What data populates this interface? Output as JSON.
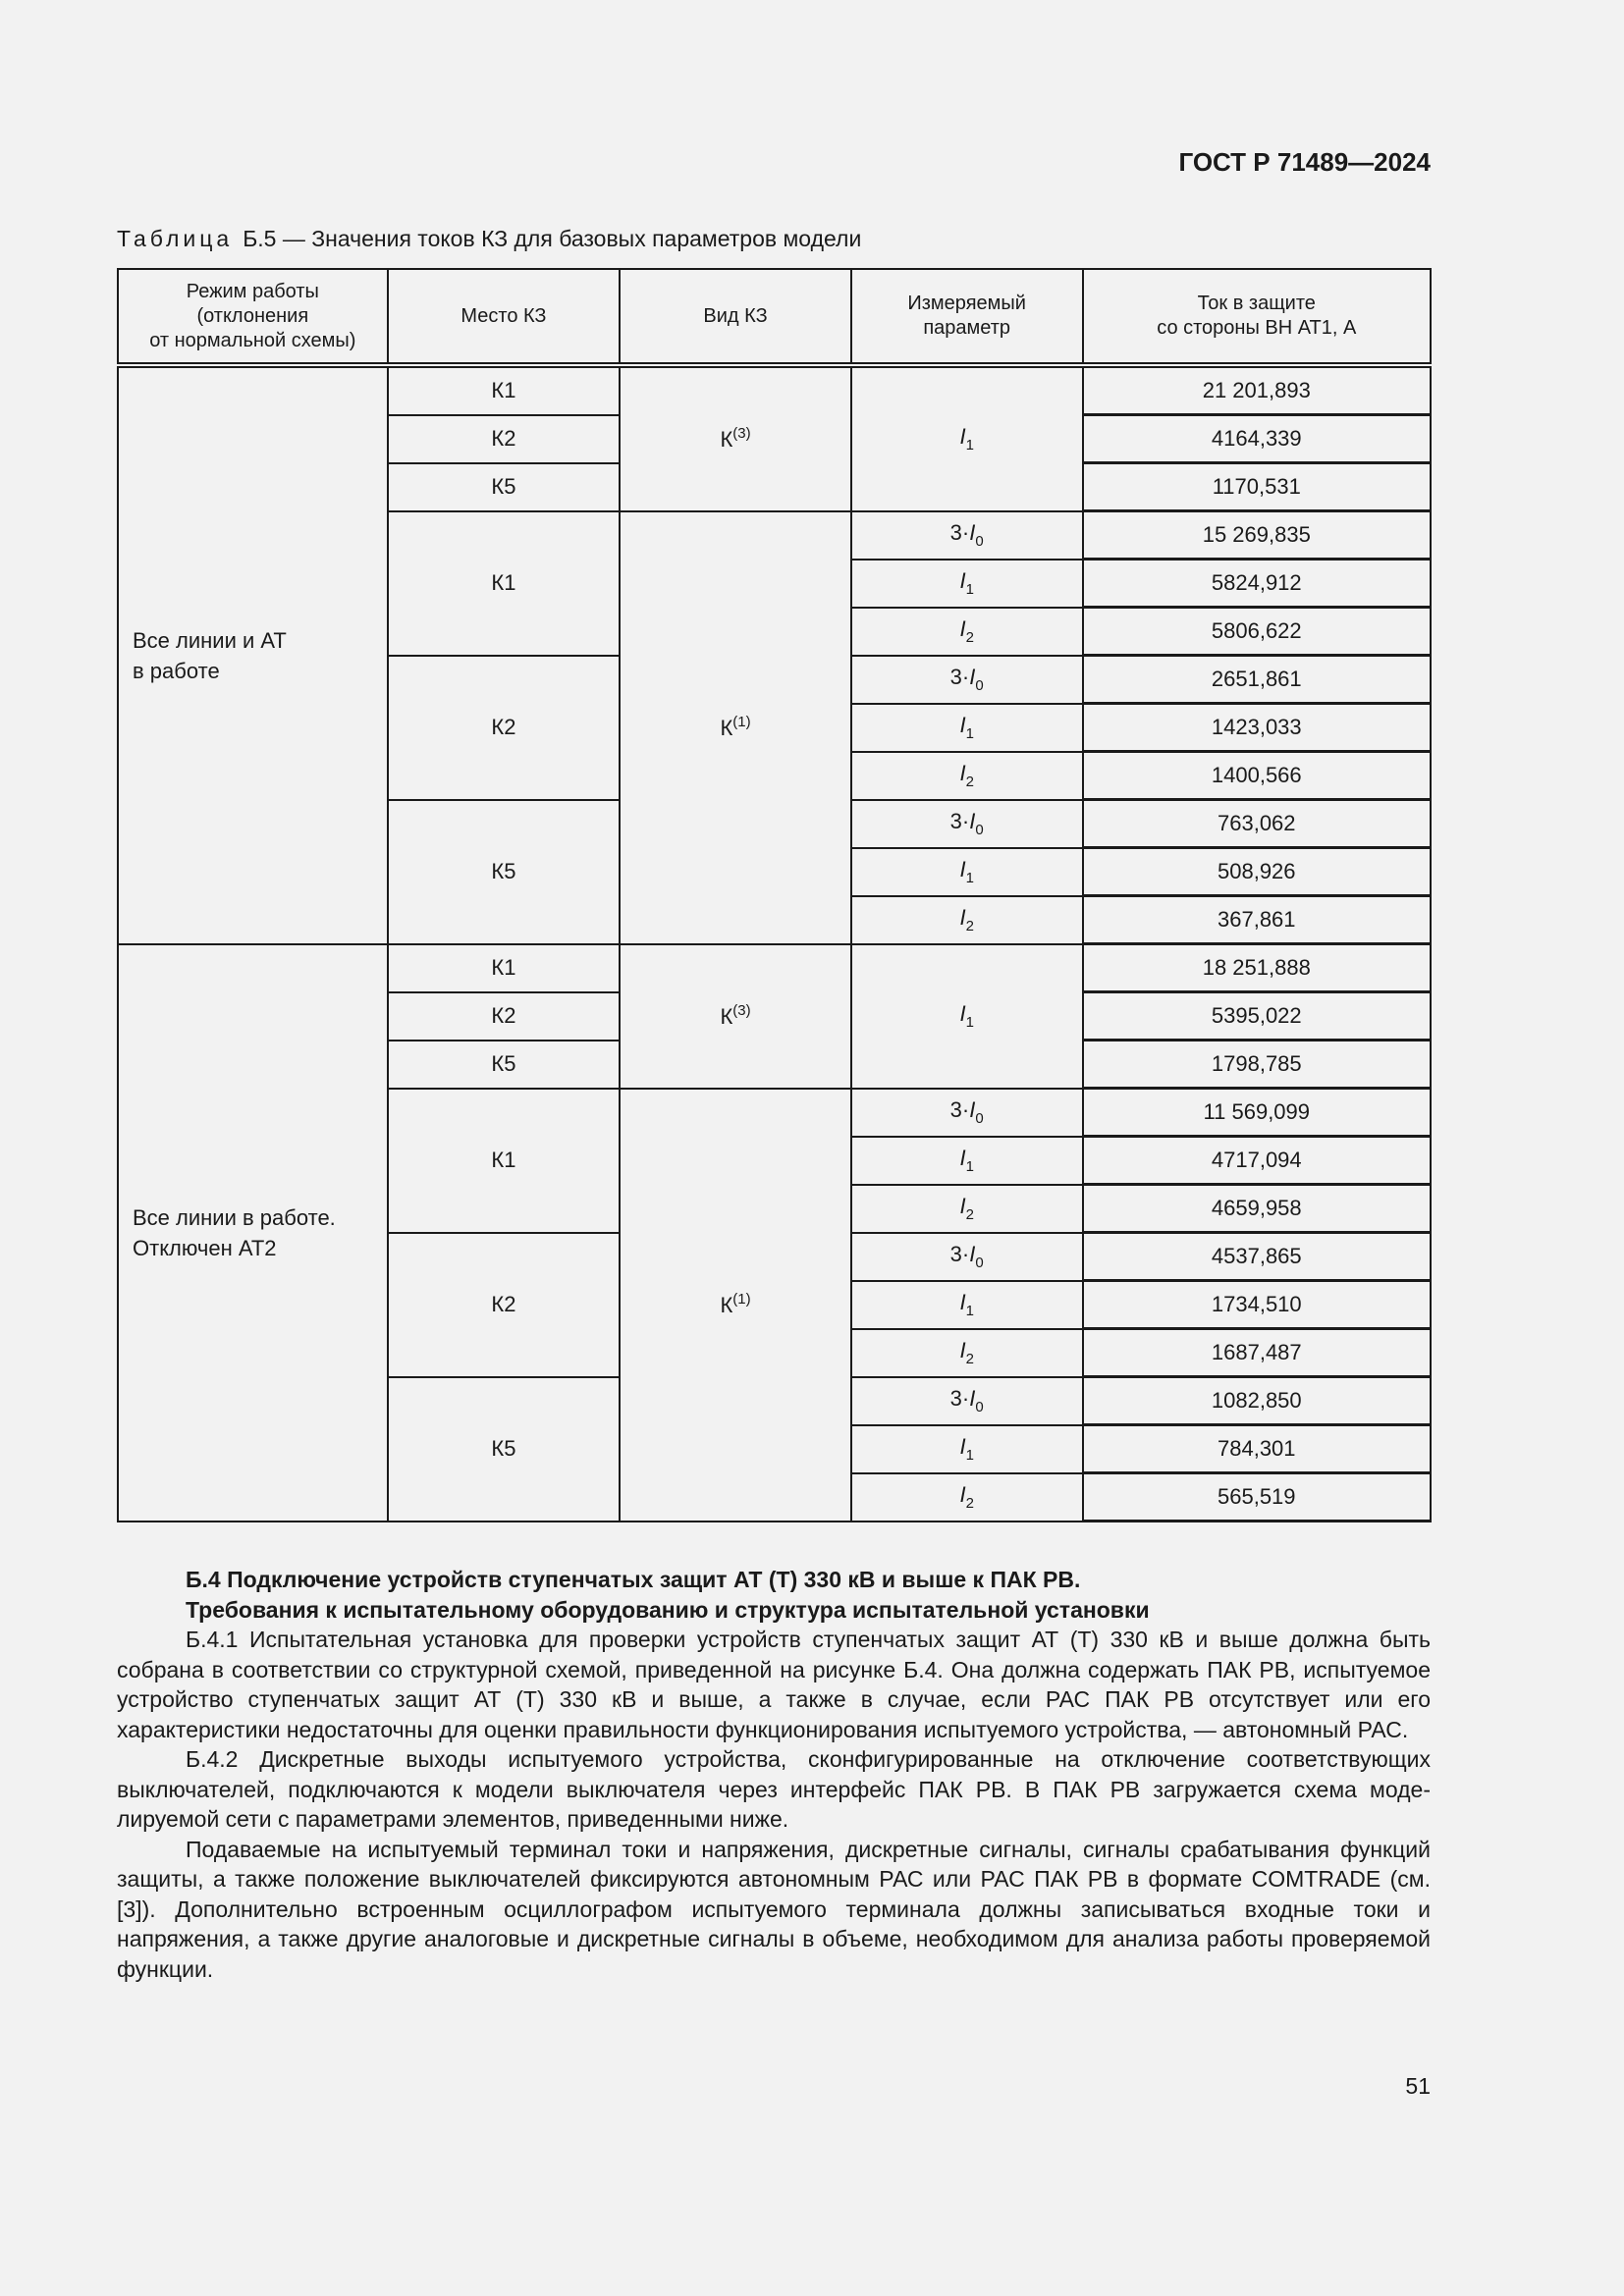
{
  "header": {
    "doc_code": "ГОСТ Р 71489—2024"
  },
  "table": {
    "caption_label": "Таблица",
    "caption_text": "Б.5 — Значения токов КЗ для базовых параметров модели",
    "headers": [
      "Режим работы\n(отклонения\nот нормальной схемы)",
      "Место КЗ",
      "Вид КЗ",
      "Измеряемый\nпараметр",
      "Ток в защите\nсо стороны ВН АТ1, А"
    ],
    "modes": [
      {
        "mode": "Все линии и АТ\nв работе",
        "three_phase": {
          "type": "К",
          "type_sup": "(3)",
          "param": "I",
          "param_sub": "1",
          "rows": [
            {
              "place": "К1",
              "value": "21 201,893"
            },
            {
              "place": "К2",
              "value": "4164,339"
            },
            {
              "place": "К5",
              "value": "1170,531"
            }
          ]
        },
        "single_phase": {
          "type": "К",
          "type_sup": "(1)",
          "places": [
            {
              "place": "К1",
              "rows": [
                {
                  "prefix": "3·",
                  "param": "I",
                  "sub": "0",
                  "value": "15 269,835"
                },
                {
                  "prefix": "",
                  "param": "I",
                  "sub": "1",
                  "value": "5824,912"
                },
                {
                  "prefix": "",
                  "param": "I",
                  "sub": "2",
                  "value": "5806,622"
                }
              ]
            },
            {
              "place": "К2",
              "rows": [
                {
                  "prefix": "3·",
                  "param": "I",
                  "sub": "0",
                  "value": "2651,861"
                },
                {
                  "prefix": "",
                  "param": "I",
                  "sub": "1",
                  "value": "1423,033"
                },
                {
                  "prefix": "",
                  "param": "I",
                  "sub": "2",
                  "value": "1400,566"
                }
              ]
            },
            {
              "place": "К5",
              "rows": [
                {
                  "prefix": "3·",
                  "param": "I",
                  "sub": "0",
                  "value": "763,062"
                },
                {
                  "prefix": "",
                  "param": "I",
                  "sub": "1",
                  "value": "508,926"
                },
                {
                  "prefix": "",
                  "param": "I",
                  "sub": "2",
                  "value": "367,861"
                }
              ]
            }
          ]
        }
      },
      {
        "mode": "Все линии в работе.\nОтключен АТ2",
        "three_phase": {
          "type": "К",
          "type_sup": "(3)",
          "param": "I",
          "param_sub": "1",
          "rows": [
            {
              "place": "К1",
              "value": "18 251,888"
            },
            {
              "place": "К2",
              "value": "5395,022"
            },
            {
              "place": "К5",
              "value": "1798,785"
            }
          ]
        },
        "single_phase": {
          "type": "К",
          "type_sup": "(1)",
          "places": [
            {
              "place": "К1",
              "rows": [
                {
                  "prefix": "3·",
                  "param": "I",
                  "sub": "0",
                  "value": "11 569,099"
                },
                {
                  "prefix": "",
                  "param": "I",
                  "sub": "1",
                  "value": "4717,094"
                },
                {
                  "prefix": "",
                  "param": "I",
                  "sub": "2",
                  "value": "4659,958"
                }
              ]
            },
            {
              "place": "К2",
              "rows": [
                {
                  "prefix": "3·",
                  "param": "I",
                  "sub": "0",
                  "value": "4537,865"
                },
                {
                  "prefix": "",
                  "param": "I",
                  "sub": "1",
                  "value": "1734,510"
                },
                {
                  "prefix": "",
                  "param": "I",
                  "sub": "2",
                  "value": "1687,487"
                }
              ]
            },
            {
              "place": "К5",
              "rows": [
                {
                  "prefix": "3·",
                  "param": "I",
                  "sub": "0",
                  "value": "1082,850"
                },
                {
                  "prefix": "",
                  "param": "I",
                  "sub": "1",
                  "value": "784,301"
                },
                {
                  "prefix": "",
                  "param": "I",
                  "sub": "2",
                  "value": "565,519"
                }
              ]
            }
          ]
        }
      }
    ]
  },
  "section": {
    "heading_line1": "Б.4 Подключение устройств ступенчатых защит АТ (Т) 330 кВ и выше к ПАК РВ.",
    "heading_line2": "Требования к испытательному оборудованию и структура испытательной установки",
    "paragraphs": [
      "Б.4.1 Испытательная установка для проверки устройств ступенчатых защит АТ (Т) 330 кВ и выше должна быть собрана в соответствии со структурной схемой, приведенной на рисунке Б.4. Она должна содержать ПАК РВ, испытуемое устройство ступенчатых защит АТ (Т) 330 кВ и выше, а также в случае, если РАС ПАК РВ отсутствует или его характеристики недостаточны для оценки правильности функционирования испытуемого устройства, — автономный РАС.",
      "Б.4.2 Дискретные выходы испытуемого устройства, сконфигурированные на отключение соответствующих выключателей, подключаются к модели выключателя через интерфейс ПАК РВ. В ПАК РВ загружается схема моде­лируемой сети с параметрами элементов, приведенными ниже.",
      "Подаваемые на испытуемый терминал токи и напряжения, дискретные сигналы, сигналы срабатывания функций защиты, а также положение выключателей фиксируются автономным РАС или РАС ПАК РВ в формате COMTRADE (см. [3]). Дополнительно встроенным осциллографом испытуемого терминала должны записываться входные токи и напряжения, а также другие аналоговые и дискретные сигналы в объеме, необходимом для анали­за работы проверяемой функции."
    ]
  },
  "footer": {
    "page_number": "51"
  }
}
